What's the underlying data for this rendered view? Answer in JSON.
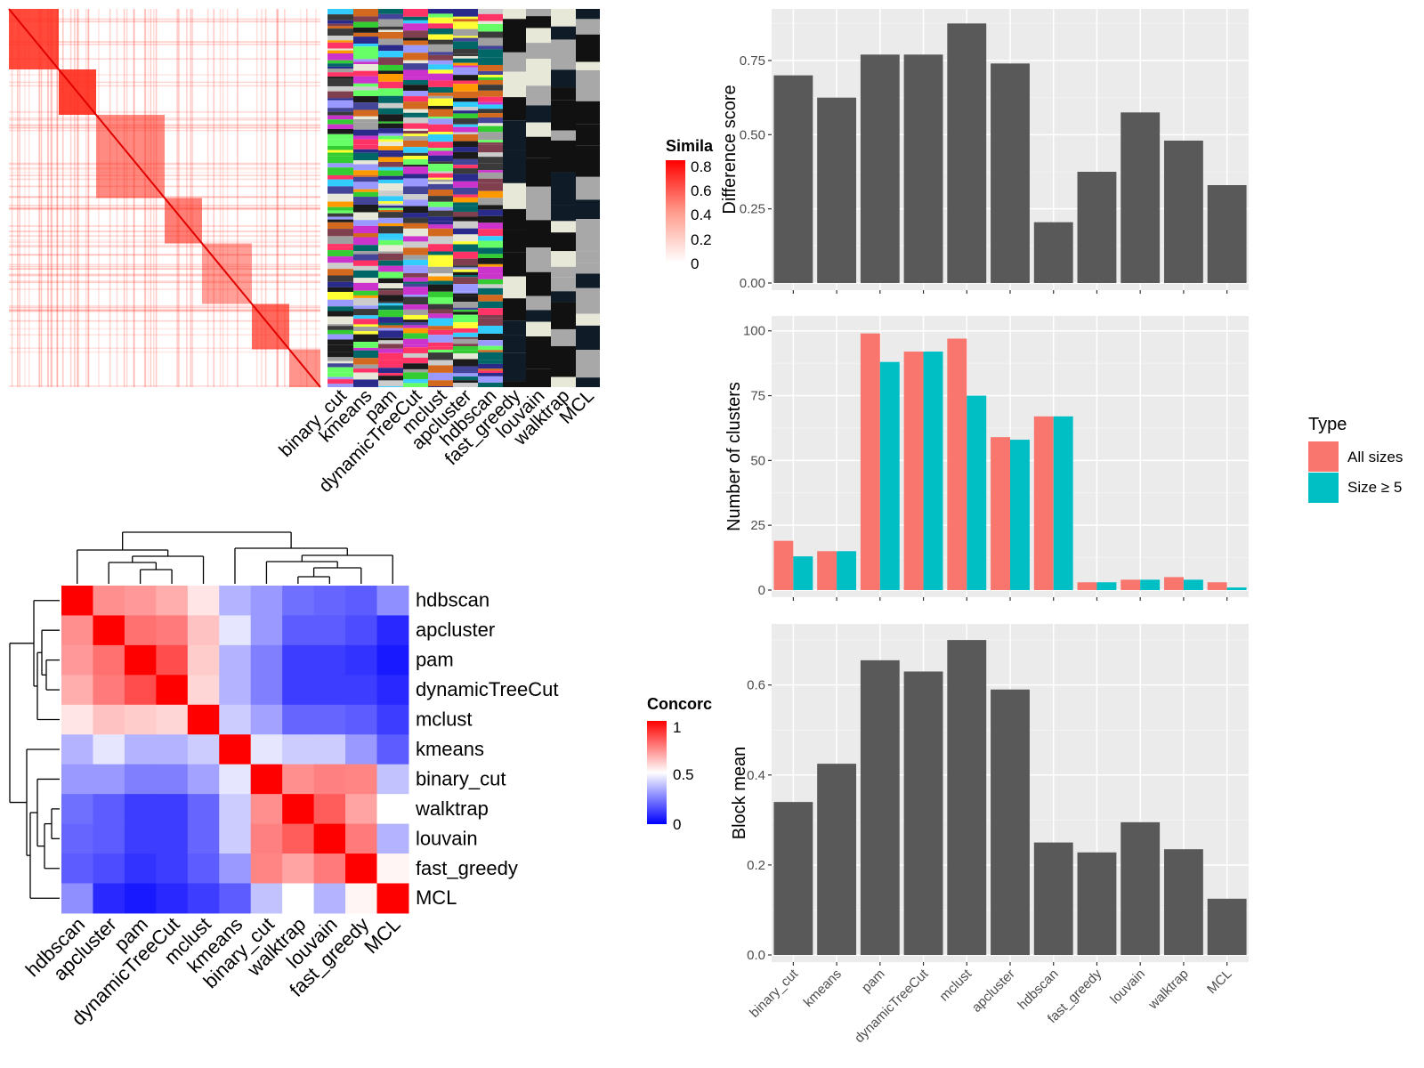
{
  "heatmap_legends": {
    "similarity_title": "Simila",
    "similarity_ticks": [
      "0.8",
      "0.6",
      "0.4",
      "0.2",
      "0"
    ],
    "concordance_title": "Concorc",
    "concordance_ticks": [
      "1",
      "0.5",
      "0"
    ]
  },
  "method_columns": [
    "binary_cut",
    "kmeans",
    "pam",
    "dynamicTreeCut",
    "mclust",
    "apcluster",
    "hdbscan",
    "fast_greedy",
    "louvain",
    "walktrap",
    "MCL"
  ],
  "colors": {
    "bar": "#595959",
    "all_sizes": "#F8766D",
    "size_ge5": "#00BFC4",
    "panel_bg": "#EBEBEB",
    "heat_high": "#FF0000",
    "heat_mid": "#FFFFFF",
    "heat_low": "#0000FF"
  },
  "chart_data": [
    {
      "type": "heatmap",
      "categories": [
        "hdbscan",
        "apcluster",
        "pam",
        "dynamicTreeCut",
        "mclust",
        "kmeans",
        "binary_cut",
        "walktrap",
        "louvain",
        "fast_greedy",
        "MCL"
      ],
      "legend_title": "Concorc",
      "matrix": [
        [
          1.0,
          0.72,
          0.7,
          0.66,
          0.55,
          0.35,
          0.3,
          0.22,
          0.2,
          0.18,
          0.28
        ],
        [
          0.72,
          1.0,
          0.78,
          0.76,
          0.62,
          0.45,
          0.3,
          0.18,
          0.18,
          0.15,
          0.08
        ],
        [
          0.7,
          0.78,
          1.0,
          0.85,
          0.6,
          0.35,
          0.25,
          0.12,
          0.12,
          0.1,
          0.05
        ],
        [
          0.66,
          0.76,
          0.85,
          1.0,
          0.58,
          0.35,
          0.25,
          0.12,
          0.12,
          0.12,
          0.08
        ],
        [
          0.55,
          0.62,
          0.6,
          0.58,
          1.0,
          0.4,
          0.32,
          0.2,
          0.2,
          0.18,
          0.12
        ],
        [
          0.35,
          0.45,
          0.35,
          0.35,
          0.4,
          1.0,
          0.45,
          0.4,
          0.4,
          0.3,
          0.18
        ],
        [
          0.3,
          0.3,
          0.25,
          0.25,
          0.32,
          0.45,
          1.0,
          0.72,
          0.75,
          0.74,
          0.38
        ],
        [
          0.22,
          0.18,
          0.12,
          0.12,
          0.2,
          0.4,
          0.72,
          1.0,
          0.82,
          0.68,
          0.5
        ],
        [
          0.2,
          0.18,
          0.12,
          0.12,
          0.2,
          0.4,
          0.75,
          0.82,
          1.0,
          0.76,
          0.35
        ],
        [
          0.18,
          0.15,
          0.1,
          0.12,
          0.18,
          0.3,
          0.74,
          0.68,
          0.76,
          1.0,
          0.52
        ],
        [
          0.28,
          0.08,
          0.05,
          0.08,
          0.12,
          0.18,
          0.38,
          0.5,
          0.35,
          0.52,
          1.0
        ]
      ]
    },
    {
      "type": "bar",
      "ylabel": "Difference score",
      "categories": [
        "binary_cut",
        "kmeans",
        "pam",
        "dynamicTreeCut",
        "mclust",
        "apcluster",
        "hdbscan",
        "fast_greedy",
        "louvain",
        "walktrap",
        "MCL"
      ],
      "values": [
        0.7,
        0.625,
        0.77,
        0.77,
        0.875,
        0.74,
        0.205,
        0.375,
        0.575,
        0.48,
        0.33
      ],
      "ylim": [
        0,
        0.9
      ],
      "yticks": [
        "0.00",
        "0.25",
        "0.50",
        "0.75"
      ],
      "grid": true
    },
    {
      "type": "bar",
      "ylabel": "Number of clusters",
      "categories": [
        "binary_cut",
        "kmeans",
        "pam",
        "dynamicTreeCut",
        "mclust",
        "apcluster",
        "hdbscan",
        "fast_greedy",
        "louvain",
        "walktrap",
        "MCL"
      ],
      "series": [
        {
          "name": "All sizes",
          "values": [
            19,
            15,
            99,
            92,
            97,
            59,
            67,
            3,
            4,
            5,
            3
          ]
        },
        {
          "name": "Size ≥ 5",
          "values": [
            13,
            15,
            88,
            92,
            75,
            58,
            67,
            3,
            4,
            4,
            1
          ]
        }
      ],
      "ylim": [
        0,
        103
      ],
      "yticks": [
        "0",
        "25",
        "50",
        "75",
        "100"
      ],
      "legend_title": "Type",
      "legend_position": "right",
      "grid": true
    },
    {
      "type": "bar",
      "ylabel": "Block mean",
      "categories": [
        "binary_cut",
        "kmeans",
        "pam",
        "dynamicTreeCut",
        "mclust",
        "apcluster",
        "hdbscan",
        "fast_greedy",
        "louvain",
        "walktrap",
        "MCL"
      ],
      "values": [
        0.34,
        0.425,
        0.655,
        0.63,
        0.7,
        0.59,
        0.25,
        0.228,
        0.295,
        0.235,
        0.125
      ],
      "ylim": [
        0,
        0.72
      ],
      "yticks": [
        "0.0",
        "0.2",
        "0.4",
        "0.6"
      ],
      "grid": true
    }
  ]
}
